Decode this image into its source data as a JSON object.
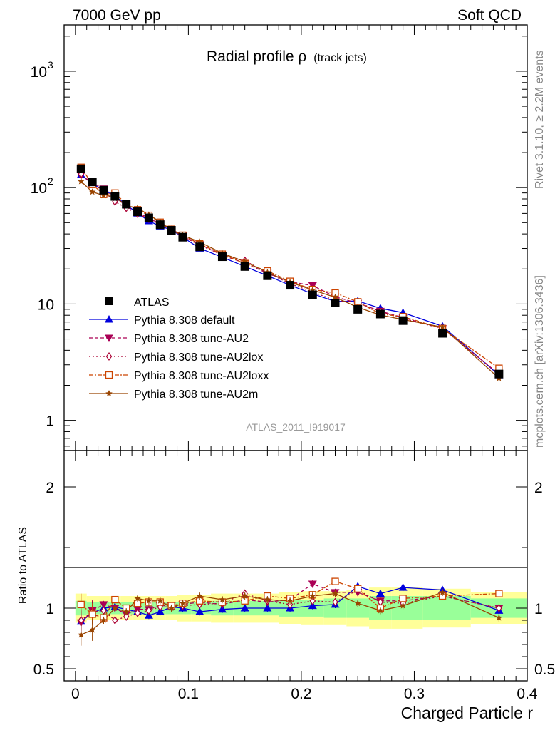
{
  "header": {
    "left": "7000 GeV pp",
    "right": "Soft QCD"
  },
  "side_text": {
    "rivet": "Rivet 3.1.10, ≥ 2.2M events",
    "mcplots": "mcplots.cern.ch [arXiv:1306.3436]"
  },
  "chart_data": {
    "type": "line",
    "title": "Radial profile ρ (track jets)",
    "title_main": "Radial profile ρ",
    "title_sub": "(track jets)",
    "analysis_label": "ATLAS_2011_I919017",
    "xlabel": "Charged Particle r",
    "ylabel_ratio": "Ratio to ATLAS",
    "x_range": [
      -0.01,
      0.4
    ],
    "main_y_range": [
      0.55,
      2500
    ],
    "main_y_scale": "log",
    "ratio_y_range": [
      0.4,
      2.3
    ],
    "x_tick_labels": [
      "0",
      "0.1",
      "0.2",
      "0.3",
      "0.4"
    ],
    "main_y_tick_labels": [
      "1",
      "10",
      "10",
      "2",
      "3"
    ],
    "ratio_y_tick_labels": [
      "0.5",
      "1",
      "2"
    ],
    "legend_position": "lower-left",
    "x": [
      0.005,
      0.015,
      0.025,
      0.035,
      0.045,
      0.055,
      0.065,
      0.075,
      0.085,
      0.095,
      0.11,
      0.13,
      0.15,
      0.17,
      0.19,
      0.21,
      0.23,
      0.25,
      0.27,
      0.29,
      0.325,
      0.375
    ],
    "data": {
      "name": "ATLAS",
      "values": [
        145,
        112,
        95,
        84,
        72,
        62,
        55,
        48,
        43,
        37.5,
        31,
        25.5,
        21,
        17.5,
        14.5,
        12,
        10.2,
        9,
        8.2,
        7.2,
        5.6,
        2.5
      ],
      "band_inner": [
        0.06,
        0.05,
        0.05,
        0.05,
        0.05,
        0.05,
        0.05,
        0.05,
        0.05,
        0.05,
        0.05,
        0.06,
        0.06,
        0.06,
        0.07,
        0.07,
        0.08,
        0.08,
        0.1,
        0.1,
        0.1,
        0.08
      ],
      "band_outer": [
        0.12,
        0.1,
        0.1,
        0.1,
        0.1,
        0.1,
        0.1,
        0.1,
        0.1,
        0.11,
        0.11,
        0.12,
        0.12,
        0.12,
        0.13,
        0.14,
        0.14,
        0.15,
        0.17,
        0.17,
        0.16,
        0.13
      ]
    },
    "series": [
      {
        "name": "Pythia 8.308 default",
        "color": "#0000dd",
        "dash": "",
        "marker": "triangle-up",
        "ratio": [
          0.89,
          0.96,
          1.0,
          1.01,
          0.99,
          0.97,
          0.94,
          0.97,
          1.01,
          1.0,
          0.97,
          0.99,
          1.0,
          1.0,
          1.0,
          1.02,
          1.03,
          1.18,
          1.12,
          1.17,
          1.15,
          0.98
        ]
      },
      {
        "name": "Pythia 8.308 tune-AU2",
        "color": "#aa0055",
        "dash": "5,3",
        "marker": "triangle-down",
        "ratio": [
          0.88,
          0.98,
          1.03,
          1.0,
          0.95,
          0.99,
          0.99,
          1.02,
          1.02,
          1.03,
          1.05,
          1.03,
          1.07,
          1.05,
          1.07,
          1.2,
          1.13,
          1.13,
          1.06,
          1.06,
          1.1,
          1.0
        ]
      },
      {
        "name": "Pythia 8.308 tune-AU2lox",
        "color": "#aa0033",
        "dash": "2,3",
        "marker": "diamond-open",
        "ratio": [
          0.9,
          0.97,
          0.98,
          0.9,
          0.93,
          0.96,
          0.98,
          1.01,
          1.01,
          1.02,
          1.03,
          1.04,
          1.12,
          1.06,
          1.03,
          1.06,
          1.05,
          1.15,
          1.05,
          1.04,
          1.1,
          1.0
        ]
      },
      {
        "name": "Pythia 8.308 tune-AU2loxx",
        "color": "#cc4400",
        "dash": "6,2,2,2",
        "marker": "square-open",
        "ratio": [
          1.03,
          0.95,
          0.92,
          1.07,
          1.0,
          1.04,
          1.05,
          1.05,
          1.02,
          1.04,
          1.06,
          1.05,
          1.06,
          1.1,
          1.08,
          1.11,
          1.22,
          1.16,
          1.0,
          1.08,
          1.1,
          1.12
        ]
      },
      {
        "name": "Pythia 8.308 tune-AU2m",
        "color": "#994400",
        "dash": "",
        "marker": "star",
        "ratio": [
          0.78,
          0.82,
          0.9,
          1.0,
          0.97,
          1.08,
          1.06,
          1.06,
          1.0,
          1.04,
          1.1,
          1.07,
          1.1,
          1.07,
          1.06,
          1.1,
          1.12,
          1.04,
          0.98,
          1.02,
          1.13,
          0.92
        ]
      }
    ]
  }
}
